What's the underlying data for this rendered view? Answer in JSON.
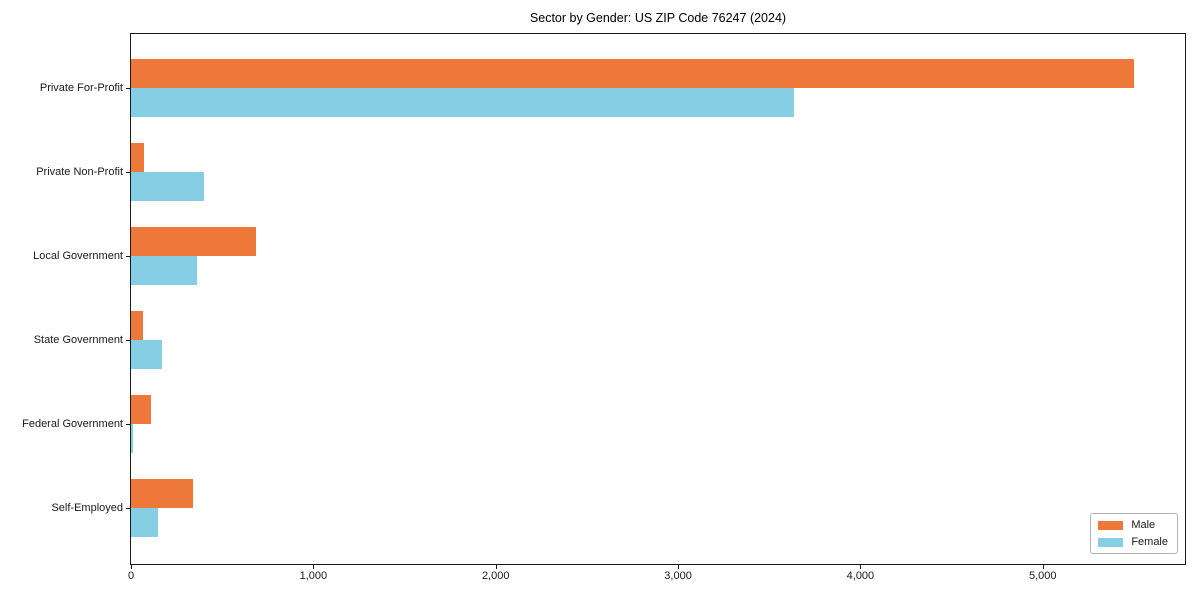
{
  "title": "Sector by Gender: US ZIP Code 76247 (2024)",
  "chart_data": {
    "type": "bar",
    "orientation": "horizontal",
    "title": "Sector by Gender: US ZIP Code 76247 (2024)",
    "categories": [
      "Private For-Profit",
      "Private Non-Profit",
      "Local Government",
      "State Government",
      "Federal Government",
      "Self-Employed"
    ],
    "series": [
      {
        "name": "Male",
        "color": "#ED7839",
        "values": [
          5500,
          72,
          688,
          66,
          110,
          340
        ]
      },
      {
        "name": "Female",
        "color": "#85CEE4",
        "values": [
          3635,
          400,
          362,
          170,
          13,
          148
        ]
      }
    ],
    "xlabel": "",
    "ylabel": "",
    "xlim": [
      0,
      5780
    ],
    "x_ticks": [
      0,
      1000,
      2000,
      3000,
      4000,
      5000
    ],
    "x_tick_labels": [
      "0",
      "1,000",
      "2,000",
      "3,000",
      "4,000",
      "5,000"
    ],
    "grid": false,
    "legend_position": "lower right",
    "colors": {
      "male": "#ED7839",
      "female": "#85CEE4",
      "spine": "#1a1a1a",
      "background": "#ffffff"
    }
  }
}
